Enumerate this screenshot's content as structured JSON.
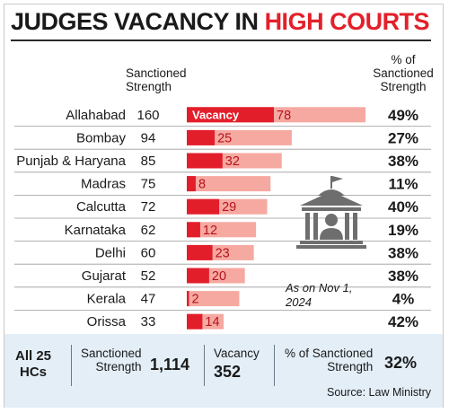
{
  "title": {
    "part1": "JUDGES VACANCY IN ",
    "part2": "HIGH COURTS"
  },
  "headers": {
    "sanctioned_line1": "Sanctioned",
    "sanctioned_line2": "Strength",
    "pct_line1": "% of",
    "pct_line2": "Sanctioned",
    "pct_line3": "Strength"
  },
  "note": {
    "line1": "As on Nov 1,",
    "line2": "2024"
  },
  "chart_data": {
    "type": "bar",
    "orientation": "horizontal",
    "categories": [
      "Allahabad",
      "Bombay",
      "Punjab & Haryana",
      "Madras",
      "Calcutta",
      "Karnataka",
      "Delhi",
      "Gujarat",
      "Kerala",
      "Orissa"
    ],
    "series": [
      {
        "name": "",
        "values": [
          160,
          94,
          85,
          75,
          72,
          62,
          60,
          52,
          47,
          33
        ]
      },
      {
        "name": "Vacancy",
        "values": [
          78,
          25,
          32,
          8,
          29,
          12,
          23,
          20,
          2,
          14
        ]
      }
    ],
    "sanctioned_strength": [
      160,
      94,
      85,
      75,
      72,
      62,
      60,
      52,
      47,
      33
    ],
    "vacancy": [
      78,
      25,
      32,
      8,
      29,
      12,
      23,
      20,
      2,
      14
    ],
    "pct_labels": [
      "49%",
      "27%",
      "38%",
      "11%",
      "40%",
      "19%",
      "38%",
      "38%",
      "4%",
      "42%"
    ],
    "vacancy_label": "Vacancy",
    "colors": {
      "vacancy": "#e31e2b",
      "sanctioned": "#f6a9a1",
      "title_accent": "#e3202a",
      "summary_bg": "#e3eef7"
    }
  },
  "summary": {
    "label_line1": "All 25",
    "label_line2": "HCs",
    "sanctioned_line1": "Sanctioned",
    "sanctioned_line2": "Strength",
    "sanctioned_value": "1,114",
    "vacancy_label": "Vacancy",
    "vacancy_value": "352",
    "pct_line1": "% of Sanctioned",
    "pct_line2": "Strength",
    "pct_value": "32%"
  },
  "source": "Source: Law Ministry",
  "icon": "court-building-icon"
}
